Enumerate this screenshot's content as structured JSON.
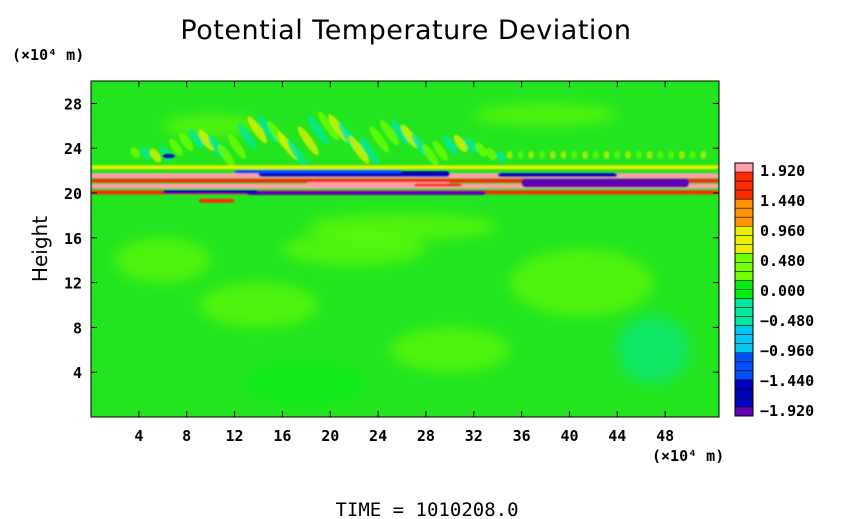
{
  "chart_data": {
    "type": "heatmap",
    "title": "Potential Temperature Deviation",
    "ylabel": "Height",
    "xunit": "(×10⁴ m)",
    "yunit": "(×10⁴ m)",
    "xlim": [
      0,
      52.5
    ],
    "ylim": [
      0,
      30
    ],
    "x_ticks": [
      4,
      8,
      12,
      16,
      20,
      24,
      28,
      32,
      36,
      40,
      44,
      48
    ],
    "y_ticks": [
      4,
      8,
      12,
      16,
      20,
      24,
      28
    ],
    "colorbar": {
      "labels": [
        "1.920",
        "1.440",
        "0.960",
        "0.480",
        "0.000",
        "−0.480",
        "−0.960",
        "−1.440",
        "−1.920"
      ],
      "min": -1.92,
      "max": 1.92,
      "colors": [
        "#ff9fa8",
        "#ff2a00",
        "#ff9400",
        "#e8f000",
        "#74ff00",
        "#00ee10",
        "#00e8a0",
        "#00c8f0",
        "#0050ff",
        "#0000c0",
        "#6000b0"
      ]
    },
    "field_description": "Background near 0.0 (green) throughout; strong banded positive (pink/red) and negative (blue/purple) deviations concentrated near 20-22 height across the domain, with weaker wave patterns above.",
    "background_color": "#22e51f"
  },
  "footer": {
    "time_text": "TIME  =  1010208.0"
  }
}
